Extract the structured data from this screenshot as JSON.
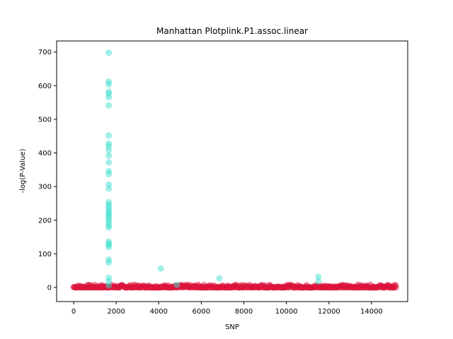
{
  "chart_data": {
    "type": "scatter",
    "title": "Manhattan Plotplink.P1.assoc.linear",
    "xlabel": "SNP",
    "ylabel": "-log(P-Value)",
    "xlim": [
      -800,
      15700
    ],
    "ylim": [
      -42,
      733
    ],
    "x_ticks": [
      0,
      2000,
      4000,
      6000,
      8000,
      10000,
      12000,
      14000
    ],
    "y_ticks": [
      0,
      100,
      200,
      300,
      400,
      500,
      600,
      700
    ],
    "grid": false,
    "legend": "none",
    "colors": {
      "significant": "#40e0d0",
      "background": "#dc143c"
    },
    "series": [
      {
        "color": "#40e0d0",
        "points": [
          [
            1650,
            698
          ],
          [
            1650,
            612
          ],
          [
            1650,
            604
          ],
          [
            1650,
            582
          ],
          [
            1650,
            576
          ],
          [
            1650,
            566
          ],
          [
            1650,
            541
          ],
          [
            1650,
            452
          ],
          [
            1650,
            428
          ],
          [
            1650,
            420
          ],
          [
            1650,
            408
          ],
          [
            1650,
            392
          ],
          [
            1650,
            372
          ],
          [
            1650,
            346
          ],
          [
            1650,
            337
          ],
          [
            1650,
            306
          ],
          [
            1650,
            294
          ],
          [
            1650,
            254
          ],
          [
            1650,
            246
          ],
          [
            1650,
            240
          ],
          [
            1650,
            232
          ],
          [
            1650,
            226
          ],
          [
            1650,
            220
          ],
          [
            1650,
            214
          ],
          [
            1650,
            208
          ],
          [
            1650,
            200
          ],
          [
            1650,
            192
          ],
          [
            1650,
            184
          ],
          [
            1650,
            178
          ],
          [
            1650,
            136
          ],
          [
            1650,
            131
          ],
          [
            1650,
            126
          ],
          [
            1650,
            120
          ],
          [
            1650,
            83
          ],
          [
            1650,
            74
          ],
          [
            1650,
            29
          ],
          [
            1650,
            18
          ],
          [
            1650,
            6
          ],
          [
            4100,
            56
          ],
          [
            4850,
            8
          ],
          [
            6850,
            27
          ],
          [
            11500,
            32
          ],
          [
            11500,
            18
          ]
        ]
      },
      {
        "color": "#dc143c",
        "x_range": [
          0,
          15150
        ],
        "y_range": [
          0,
          8
        ]
      }
    ]
  }
}
